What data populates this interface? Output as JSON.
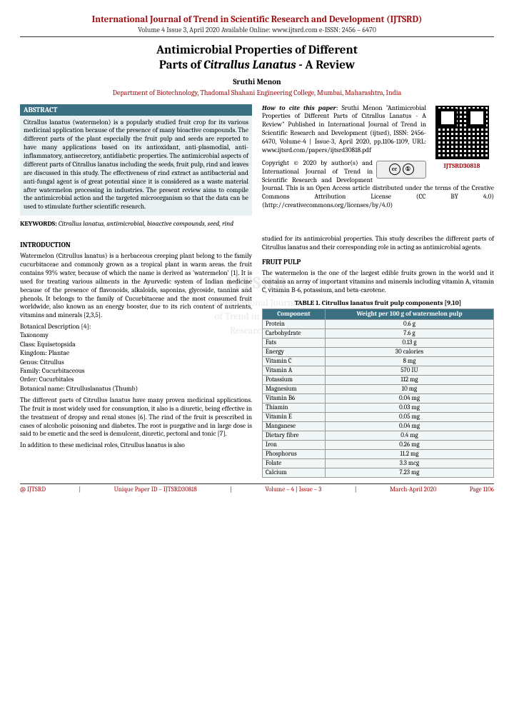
{
  "header": {
    "journal": "International Journal of Trend in Scientific Research and Development (IJTSRD)",
    "volume_line": "Volume 4 Issue 3, April 2020 Available Online: www.ijtsrd.com e-ISSN: 2456 – 6470"
  },
  "title_line1": "Antimicrobial Properties of Different",
  "title_line2": "Parts of Citrallus Lanatus - A Review",
  "author": "Sruthi Menon",
  "affiliation": "Department of Biotechnology, Thadomal Shahani Engineering College, Mumbai, Maharashtra, India",
  "abstract_head": "ABSTRACT",
  "abstract_body": "Citrallus lanatus (watermelon) is a popularly studied fruit crop for its various medicinal application because of the presence of many bioactive compounds. The different parts of the plant especially the fruit pulp and seeds are reported to have many applications based on its antioxidant, anti-plasmodial, anti-inflammatory, antisecretory, antidiabetic properties. The antimicrobial aspects of different parts of Citrallus lanatus including the seeds, fruit pulp, rind and leaves are discussed in this study. The effectiveness of rind extract as antibacterial and anti-fungal agent is of great potential since it is considered as a waste material after watermelon processing in industries. The present review aims to compile the antimicrobial action and the targeted microorganism so that the data can be used to stimulate further scientific research.",
  "keywords_label": "KEYWORDS:",
  "keywords_text": " Citrallus lanatus, antimicrobial, bioactive compounds, seed, rind",
  "howcite": {
    "lead": "How to cite this paper",
    "text1": ": Sruthi Menon \"Antimicrobial Properties of Different Parts of Citrallus Lanatus - A Review\" Published in International Journal of Trend in Scientific Research and Development (ijtsrd), ISSN: 2456-6470, Volume-4 | Issue-3, April 2020, pp.1106-1109, URL: www.ijtsrd.com/papers/ijtsrd30818.pdf",
    "qr_id": "IJTSRD30818",
    "copy": "Copyright © 2020 by author(s) and International Journal of Trend in Scientific Research and Development Journal. This is an Open Access article distributed under the terms of the Creative Commons Attribution License (CC BY 4.0) (http://creativecommons.org/licenses/by/4.0)"
  },
  "intro_head": "INTRODUCTION",
  "intro_p1": "Watermelon (Citrullus lanatus) is a herbaceous creeping plant belong to the family cucurbitaceae and commonly grown as a tropical plant in warm areas. the fruit contains 93% water, because of which the name is derived as 'watermelon' [1]. It is used for treating various ailments in the Ayurvedic system of Indian medicine because of the presence of flavonoids, alkaloids, saponins, glycoside, tannins and phenols. It belongs to the family of Cucurbitaceae and the most consumed fruit worldwide, also known as an energy booster, due to its rich content of nutrients, vitamins and minerals [2,3,5].",
  "taxon_head": "Botanical Description [4]:",
  "taxon": [
    "Taxonomy",
    "Class: Equisetopsida",
    "Kingdom: Plantae",
    "Genus: Citrullus",
    "Family: Cucurbitaceous",
    "Order: Cucurbitales",
    "Botanical name: Citrulluslanatus (Thumb)"
  ],
  "intro_p2": "The different parts of Citrullus lanatus have many proven medicinal applications. The fruit is most widely used for consumption, it also is a diuretic, being effective in the treatment of dropsy and renal stones [6]. The rind of the fruit is prescribed in cases of alcoholic poisoning and diabetes. The root is purgative and in large dose is said to be emetic and the seed is demulcent, diuretic, pectoral and tonic [7].",
  "intro_p3": "In addition to these medicinal roles, Citrullus lanatus is also",
  "intro_p3b": "studied for its antimicrobial properties. This study describes the different parts of Citrullus lanatus and their corresponding role in acting as antimicrobial agents.",
  "fruit_head": "FRUIT PULP",
  "fruit_p": "The watermelon is the one of the largest edible fruits grown in the world and it contains an array of important vitamins and minerals including vitamin A, vitamin C, vitamin B-6, potassium, and beta-carotene.",
  "table": {
    "caption": "TABLE 1. Citrullus lanatus fruit pulp components [9,10]",
    "col1": "Component",
    "col2": "Weight per 100 g of watermelon pulp",
    "header_bg": "#3b7083",
    "row_bg": "#f1f6f7",
    "rows": [
      [
        "Protein",
        "0.6 g"
      ],
      [
        "Carbohydrate",
        "7.6 g"
      ],
      [
        "Fats",
        "0.13 g"
      ],
      [
        "Energy",
        "30 calories"
      ],
      [
        "Vitamin C",
        "8 mg"
      ],
      [
        "Vitamin A",
        "570 IU"
      ],
      [
        "Potassium",
        "112 mg"
      ],
      [
        "Magnesium",
        "10 mg"
      ],
      [
        "Vitamin B6",
        "0.04 mg"
      ],
      [
        "Thiamin",
        "0.03 mg"
      ],
      [
        "Vitamin E",
        "0.05 mg"
      ],
      [
        "Manganese",
        "0.04 mg"
      ],
      [
        "Dietary fibre",
        "0.4 mg"
      ],
      [
        "Iron",
        "0.26 mg"
      ],
      [
        "Phosphorus",
        "11.2 mg"
      ],
      [
        "Folate",
        "3.3 mcg"
      ],
      [
        "Calcium",
        "7.23 mg"
      ]
    ]
  },
  "watermark": {
    "big": "IJTSRD",
    "l1": "International Journal",
    "l2": "of Trend in Scientific",
    "l3": "Research and"
  },
  "footer": {
    "a": "@ IJTSRD",
    "b": "Unique Paper ID – IJTSRD30818",
    "c": "Volume – 4 | Issue – 3",
    "d": "March-April 2020",
    "page": "Page 1106"
  },
  "colors": {
    "brand": "#a01114",
    "teal": "#3b7083",
    "abs_bg": "#e8f0f2"
  }
}
